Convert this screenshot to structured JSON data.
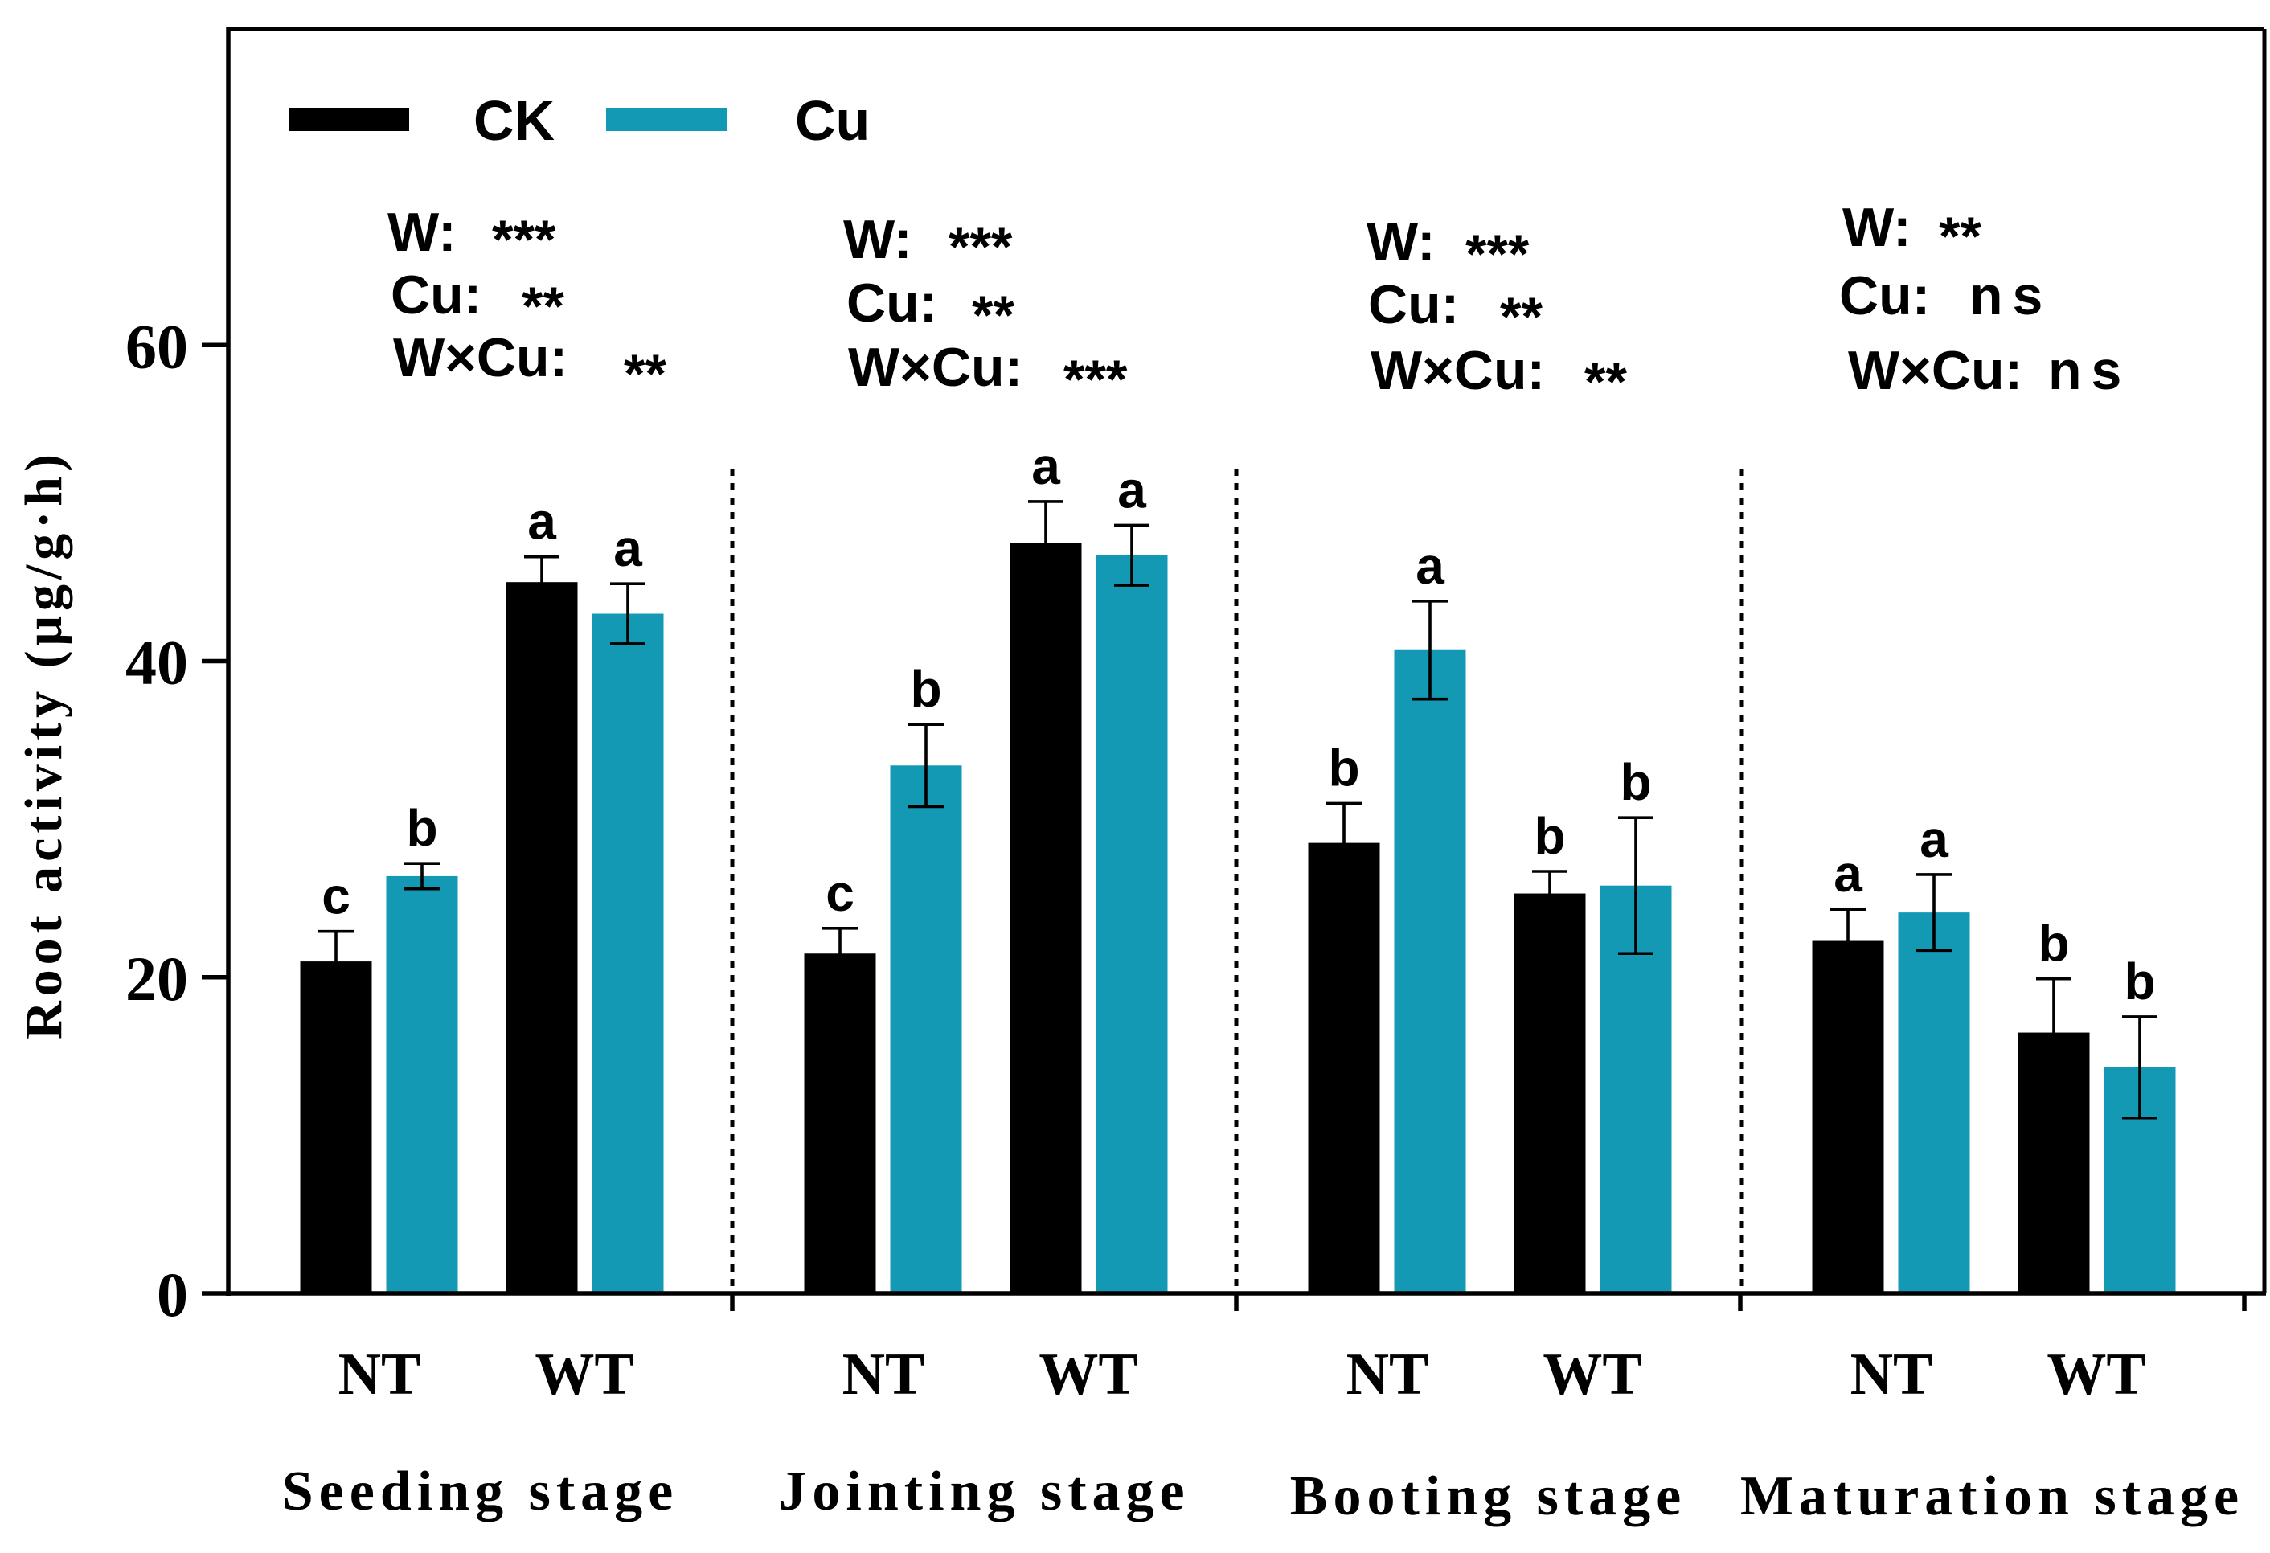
{
  "chart_data": {
    "type": "bar",
    "ylabel": "Root activity (μg/g·h)",
    "ylim": [
      0,
      80
    ],
    "yticks": [
      0,
      20,
      40,
      60
    ],
    "legend_position": "top-left",
    "series": [
      {
        "name": "CK",
        "color": "#000000",
        "values": [
          21.0,
          45.0,
          21.5,
          47.5,
          28.5,
          25.3,
          22.3,
          16.5
        ],
        "errors": [
          1.9,
          1.6,
          1.6,
          2.6,
          2.5,
          1.4,
          2.0,
          3.4
        ],
        "letters": [
          "c",
          "a",
          "c",
          "a",
          "b",
          "b",
          "a",
          "b"
        ]
      },
      {
        "name": "Cu",
        "color": "#1399b4",
        "values": [
          26.4,
          43.0,
          33.4,
          46.7,
          40.7,
          25.8,
          24.1,
          14.3
        ],
        "errors": [
          0.8,
          1.9,
          2.6,
          1.9,
          3.1,
          4.3,
          2.4,
          3.2
        ],
        "letters": [
          "b",
          "a",
          "b",
          "a",
          "a",
          "b",
          "a",
          "b"
        ]
      }
    ],
    "groups": [
      {
        "name": "Seeding stage",
        "categories": [
          "NT",
          "WT"
        ],
        "significance": [
          {
            "factor": "W:",
            "result": "***"
          },
          {
            "factor": "Cu:",
            "result": "**"
          },
          {
            "factor": "W×Cu:",
            "result": "**"
          }
        ]
      },
      {
        "name": "Jointing stage",
        "categories": [
          "NT",
          "WT"
        ],
        "significance": [
          {
            "factor": "W:",
            "result": "***"
          },
          {
            "factor": "Cu:",
            "result": "**"
          },
          {
            "factor": "W×Cu:",
            "result": "***"
          }
        ]
      },
      {
        "name": "Booting stage",
        "categories": [
          "NT",
          "WT"
        ],
        "significance": [
          {
            "factor": "W:",
            "result": "***"
          },
          {
            "factor": "Cu:",
            "result": "**"
          },
          {
            "factor": "W×Cu:",
            "result": "**"
          }
        ]
      },
      {
        "name": "Maturation stage",
        "categories": [
          "NT",
          "WT"
        ],
        "significance": [
          {
            "factor": "W:",
            "result": "**"
          },
          {
            "factor": "Cu:",
            "result": "ns"
          },
          {
            "factor": "W×Cu:",
            "result": "ns"
          }
        ]
      }
    ]
  }
}
